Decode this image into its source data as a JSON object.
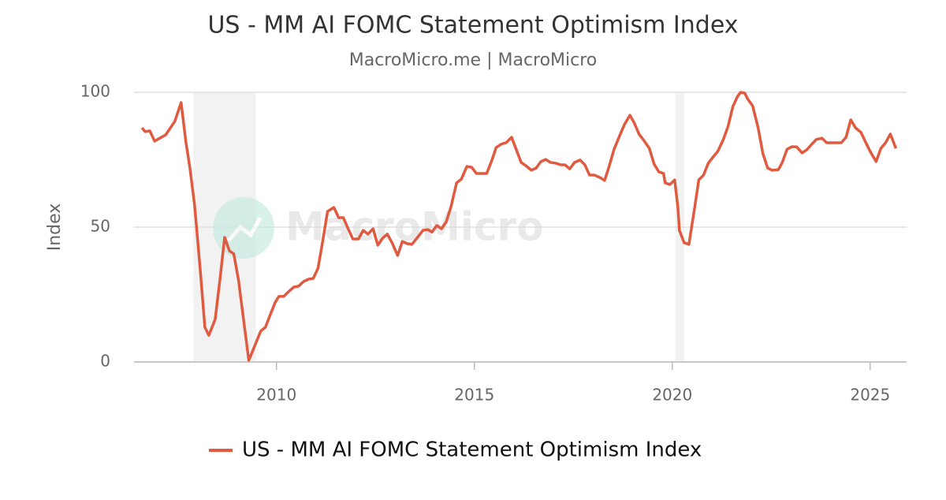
{
  "chart_data": {
    "type": "line",
    "title": "US - MM AI FOMC Statement Optimism Index",
    "subtitle": "MacroMicro.me | MacroMicro",
    "watermark": "MacroMicro",
    "y_label": "Index",
    "xlim": [
      2006.4,
      2025.92
    ],
    "xticks": [
      2010,
      2015,
      2020,
      2025
    ],
    "ylim": [
      0,
      100
    ],
    "yticks": [
      0,
      50,
      100
    ],
    "grid": true,
    "legend": "bottom",
    "shaded_periods": [
      [
        2007.9,
        2009.48
      ],
      [
        2020.08,
        2020.3
      ]
    ],
    "x": [
      2006.6,
      2006.68,
      2006.8,
      2006.92,
      2007.2,
      2007.43,
      2007.59,
      2007.71,
      2007.81,
      2007.93,
      2008.07,
      2008.19,
      2008.29,
      2008.45,
      2008.57,
      2008.69,
      2008.81,
      2008.92,
      2009.04,
      2009.18,
      2009.3,
      2009.44,
      2009.6,
      2009.72,
      2009.96,
      2010.06,
      2010.18,
      2010.3,
      2010.44,
      2010.56,
      2010.68,
      2010.81,
      2010.93,
      2011.05,
      2011.17,
      2011.29,
      2011.45,
      2011.57,
      2011.69,
      2011.81,
      2011.93,
      2012.07,
      2012.19,
      2012.31,
      2012.44,
      2012.56,
      2012.68,
      2012.8,
      2012.92,
      2013.06,
      2013.18,
      2013.3,
      2013.42,
      2013.58,
      2013.7,
      2013.82,
      2013.93,
      2014.05,
      2014.17,
      2014.29,
      2014.41,
      2014.55,
      2014.67,
      2014.81,
      2014.93,
      2015.05,
      2015.31,
      2015.43,
      2015.55,
      2015.67,
      2015.8,
      2015.94,
      2016.06,
      2016.18,
      2016.3,
      2016.44,
      2016.56,
      2016.68,
      2016.8,
      2016.92,
      2017.06,
      2017.18,
      2017.29,
      2017.41,
      2017.53,
      2017.67,
      2017.79,
      2017.91,
      2018.03,
      2018.17,
      2018.29,
      2018.41,
      2018.53,
      2018.67,
      2018.79,
      2018.93,
      2019.04,
      2019.16,
      2019.28,
      2019.42,
      2019.54,
      2019.66,
      2019.78,
      2019.82,
      2019.94,
      2020.06,
      2020.14,
      2020.18,
      2020.3,
      2020.42,
      2020.56,
      2020.67,
      2020.79,
      2020.91,
      2021.03,
      2021.15,
      2021.29,
      2021.41,
      2021.53,
      2021.65,
      2021.73,
      2021.83,
      2021.91,
      2022.03,
      2022.17,
      2022.29,
      2022.41,
      2022.52,
      2022.68,
      2022.78,
      2022.9,
      2023.02,
      2023.14,
      2023.28,
      2023.4,
      2023.52,
      2023.64,
      2023.78,
      2023.9,
      2024.01,
      2024.13,
      2024.27,
      2024.39,
      2024.51,
      2024.63,
      2024.77,
      2024.89,
      2025.01,
      2025.15,
      2025.27,
      2025.39,
      2025.51,
      2025.65
    ],
    "series": [
      {
        "name": "US - MM AI FOMC Statement Optimism Index",
        "color": "#e05a40",
        "values": [
          86.8,
          85.4,
          85.7,
          81.9,
          84.2,
          89.2,
          96.2,
          81.6,
          72.2,
          58.2,
          34.8,
          12.9,
          9.9,
          15.8,
          30.4,
          46.2,
          41.2,
          40.1,
          30.4,
          14.3,
          0.6,
          5.6,
          11.4,
          12.9,
          21.9,
          24.3,
          24.3,
          26.0,
          27.8,
          28.1,
          29.8,
          30.7,
          31.0,
          34.8,
          45.0,
          55.8,
          57.3,
          53.5,
          53.5,
          49.4,
          45.6,
          45.6,
          48.8,
          47.4,
          49.4,
          43.3,
          45.9,
          47.4,
          44.2,
          39.5,
          44.7,
          43.9,
          43.6,
          46.5,
          48.8,
          49.1,
          48.2,
          50.6,
          49.4,
          52.0,
          57.6,
          66.4,
          67.8,
          72.5,
          72.2,
          69.9,
          69.9,
          74.3,
          79.5,
          80.7,
          81.3,
          83.3,
          78.7,
          74.0,
          72.8,
          71.1,
          71.9,
          74.3,
          75.1,
          74.0,
          73.7,
          73.1,
          73.1,
          71.6,
          74.0,
          74.9,
          73.1,
          69.3,
          69.3,
          68.4,
          67.3,
          72.8,
          78.9,
          83.9,
          88.0,
          91.5,
          88.6,
          84.5,
          82.2,
          79.2,
          73.4,
          70.5,
          69.9,
          66.4,
          65.8,
          67.5,
          57.6,
          48.8,
          44.2,
          43.6,
          56.7,
          67.5,
          69.3,
          73.7,
          76.0,
          78.1,
          82.5,
          87.4,
          94.7,
          98.5,
          100,
          99.7,
          97.4,
          95.0,
          86.8,
          77.2,
          71.9,
          71.1,
          71.3,
          74.0,
          78.9,
          79.8,
          79.8,
          77.5,
          78.7,
          80.7,
          82.5,
          83.0,
          81.3,
          81.3,
          81.3,
          81.3,
          83.3,
          89.8,
          86.8,
          85.1,
          81.3,
          77.8,
          74.3,
          79.2,
          81.3,
          84.5,
          79.2
        ]
      }
    ]
  }
}
